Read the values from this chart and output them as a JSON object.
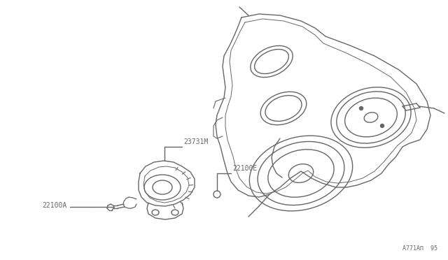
{
  "bg_color": "#ffffff",
  "line_color": "#666666",
  "line_width": 1.0,
  "ref_code": "A771AΠ  95",
  "fig_width": 6.4,
  "fig_height": 3.72,
  "dpi": 100,
  "label_22100E": [
    0.355,
    0.595
  ],
  "label_23731M": [
    0.305,
    0.475
  ],
  "label_22100A": [
    0.085,
    0.555
  ],
  "label_fontsize": 7.0
}
